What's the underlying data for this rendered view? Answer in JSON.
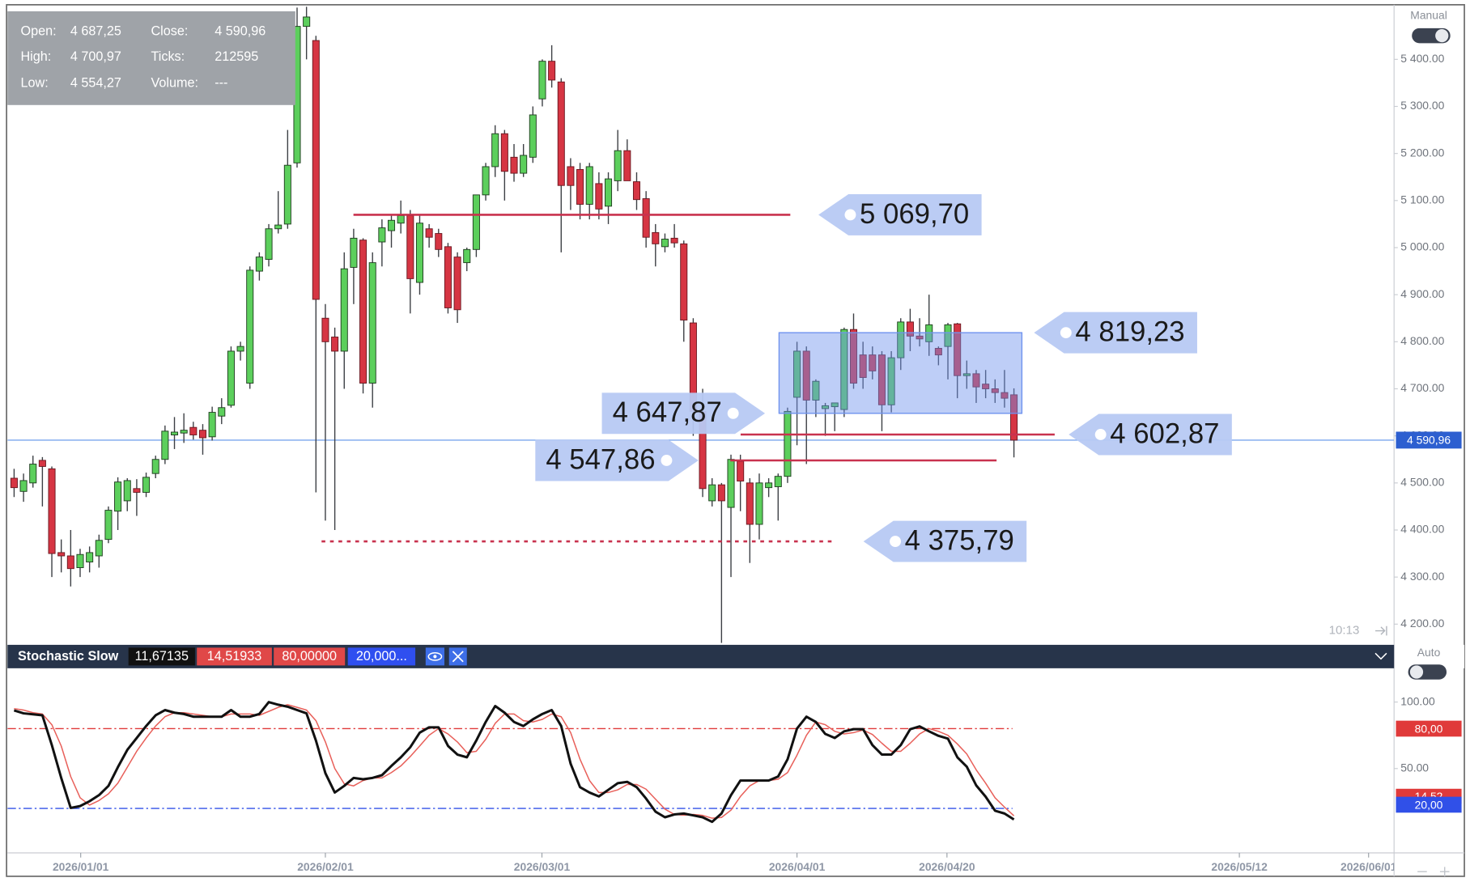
{
  "chart_data": [
    {
      "type": "candlestick",
      "mode_label": "Manual",
      "time_label": "10:13",
      "info_panel": [
        [
          "Open:",
          "4 687,25",
          "Close:",
          "4 590,96"
        ],
        [
          "High:",
          "4 700,97",
          "Ticks:",
          "212595"
        ],
        [
          "Low:",
          "4 554,27",
          "Volume:",
          "---"
        ]
      ],
      "up_color": "#5ccf5c",
      "down_color": "#d63543",
      "open": [
        4510,
        4482,
        4500,
        4548,
        4530,
        4352,
        4345,
        4320,
        4332,
        4345,
        4380,
        4440,
        4462,
        4488,
        4480,
        4520,
        4550,
        4602,
        4606,
        4618,
        4612,
        4598,
        4642,
        4665,
        4780,
        4712,
        4950,
        4975,
        5040,
        5050,
        5180,
        5470,
        5440,
        4850,
        4810,
        4780,
        4958,
        5016,
        4712,
        5012,
        5036,
        5052,
        5068,
        4926,
        5040,
        5030,
        5002,
        4980,
        4968,
        4996,
        5112,
        5172,
        5242,
        5192,
        5158,
        5192,
        5316,
        5396,
        5352,
        5172,
        5166,
        5092,
        5136,
        5088,
        5142,
        5206,
        5140,
        5104,
        5032,
        5002,
        5020,
        5008,
        4840,
        4652,
        4462,
        4496,
        4448,
        4546,
        4500,
        4412,
        4490,
        4492,
        4514,
        4682,
        4780,
        4676,
        4658,
        4662,
        4656,
        4826,
        4772,
        4772,
        4772,
        4666,
        4766,
        4842,
        4812,
        4800,
        4786,
        4790,
        4838,
        4728,
        4732,
        4710,
        4700,
        4692,
        4687.25
      ],
      "high": [
        4530,
        4520,
        4558,
        4555,
        4535,
        4380,
        4400,
        4360,
        4365,
        4390,
        4450,
        4512,
        4510,
        4508,
        4522,
        4558,
        4622,
        4640,
        4648,
        4630,
        4625,
        4662,
        4680,
        4790,
        4800,
        4960,
        4990,
        5050,
        5120,
        5250,
        5510,
        5512,
        5450,
        4880,
        4830,
        4990,
        5040,
        5020,
        4990,
        5060,
        5070,
        5100,
        5080,
        5070,
        5050,
        5040,
        5010,
        4990,
        5000,
        5110,
        5180,
        5260,
        5250,
        5220,
        5220,
        5300,
        5400,
        5430,
        5360,
        5190,
        5180,
        5180,
        5160,
        5160,
        5250,
        5230,
        5160,
        5120,
        5050,
        5030,
        5050,
        5015,
        4850,
        4700,
        4510,
        4500,
        4560,
        4560,
        4510,
        4520,
        4510,
        4520,
        4660,
        4800,
        4790,
        4720,
        4670,
        4670,
        4830,
        4860,
        4800,
        4790,
        4780,
        4780,
        4850,
        4870,
        4850,
        4900,
        4790,
        4840,
        4840,
        4760,
        4740,
        4740,
        4720,
        4740,
        4700.97
      ],
      "low": [
        4470,
        4460,
        4490,
        4450,
        4300,
        4310,
        4280,
        4300,
        4310,
        4320,
        4372,
        4400,
        4440,
        4430,
        4470,
        4510,
        4540,
        4572,
        4585,
        4592,
        4560,
        4590,
        4625,
        4660,
        4760,
        4700,
        4930,
        4960,
        5030,
        5040,
        5170,
        5400,
        4480,
        4420,
        4400,
        4700,
        4880,
        4690,
        4660,
        4960,
        5000,
        5030,
        4860,
        4900,
        5000,
        4980,
        4860,
        4840,
        4950,
        4980,
        5100,
        5150,
        5100,
        5140,
        5150,
        5180,
        5300,
        5340,
        4990,
        5080,
        5060,
        5060,
        5060,
        5050,
        5120,
        5150,
        5080,
        5000,
        4960,
        4990,
        5000,
        4800,
        4600,
        4470,
        4450,
        4160,
        4300,
        4440,
        4330,
        4380,
        4470,
        4420,
        4500,
        4580,
        4540,
        4640,
        4600,
        4610,
        4640,
        4700,
        4700,
        4720,
        4610,
        4650,
        4740,
        4780,
        4790,
        4770,
        4750,
        4720,
        4680,
        4700,
        4670,
        4680,
        4670,
        4660,
        4554.27
      ],
      "close": [
        4490,
        4505,
        4540,
        4535,
        4350,
        4345,
        4318,
        4348,
        4352,
        4378,
        4442,
        4502,
        4505,
        4480,
        4512,
        4550,
        4610,
        4608,
        4612,
        4602,
        4596,
        4650,
        4660,
        4780,
        4790,
        4952,
        4980,
        5040,
        5048,
        5175,
        5470,
        5490,
        4890,
        4800,
        4780,
        4955,
        5020,
        4712,
        4968,
        5042,
        5058,
        5068,
        4934,
        5052,
        5022,
        4996,
        4872,
        4868,
        4996,
        5112,
        5172,
        5242,
        5162,
        5158,
        5196,
        5282,
        5396,
        5356,
        5132,
        5132,
        5092,
        5172,
        5082,
        5146,
        5206,
        5142,
        5102,
        5022,
        5008,
        5018,
        5010,
        4846,
        4652,
        4488,
        4496,
        4462,
        4550,
        4504,
        4412,
        4500,
        4500,
        4514,
        4652,
        4780,
        4676,
        4716,
        4664,
        4670,
        4826,
        4712,
        4724,
        4738,
        4666,
        4766,
        4842,
        4812,
        4806,
        4836,
        4772,
        4836,
        4728,
        4732,
        4704,
        4700,
        4692,
        4680,
        4590.96
      ],
      "last_price": {
        "value": 4590.96,
        "label": "4 590,96",
        "color": "#2d5fd0"
      },
      "line_color": "#c8324e",
      "lines": [
        {
          "value": 5069.7,
          "label": "5 069,70",
          "style": "solid"
        },
        {
          "value": 4602.87,
          "label": "4 602,87",
          "style": "solid"
        },
        {
          "value": 4547.86,
          "label": "4 547,86",
          "style": "solid"
        },
        {
          "value": 4375.79,
          "label": "4 375,79",
          "style": "dotted"
        }
      ],
      "rectangle": {
        "values": [
          4647.87,
          4819.23
        ],
        "labels": [
          "4 647,87",
          "4 819,23"
        ],
        "color": "#6f93ee"
      },
      "xlim": [
        -0.7,
        146.3
      ],
      "xticks": [
        {
          "value": 7.06,
          "label": "2026/01/01"
        },
        {
          "value": 33.0,
          "label": "2026/02/01"
        },
        {
          "value": 55.96,
          "label": "2026/03/01"
        },
        {
          "value": 83.0,
          "label": "2026/04/01"
        },
        {
          "value": 98.9,
          "label": "2026/04/20"
        },
        {
          "value": 129.9,
          "label": "2026/05/12"
        },
        {
          "value": 143.6,
          "label": "2026/06/01"
        }
      ],
      "ylim": [
        4160,
        5512
      ],
      "yticks": [
        {
          "value": 4200,
          "label": "4 200.00"
        },
        {
          "value": 4300,
          "label": "4 300.00"
        },
        {
          "value": 4400,
          "label": "4 400.00"
        },
        {
          "value": 4500,
          "label": "4 500.00"
        },
        {
          "value": 4600,
          "label": "4 600.00"
        },
        {
          "value": 4700,
          "label": "4 700.00"
        },
        {
          "value": 4800,
          "label": "4 800.00"
        },
        {
          "value": 4900,
          "label": "4 900.00"
        },
        {
          "value": 5000,
          "label": "5 000.00"
        },
        {
          "value": 5100,
          "label": "5 100.00"
        },
        {
          "value": 5200,
          "label": "5 200.00"
        },
        {
          "value": 5300,
          "label": "5 300.00"
        },
        {
          "value": 5400,
          "label": "5 400.00"
        }
      ]
    },
    {
      "type": "line",
      "title": "Stochastic Slow",
      "mode_label": "Auto",
      "header_values": [
        {
          "label": "11,67135",
          "color": "#111111"
        },
        {
          "label": "14,51933",
          "color": "#e04848"
        },
        {
          "label": "80,00000",
          "color": "#e04848"
        },
        {
          "label": "20,000...",
          "color": "#2f4ff0"
        }
      ],
      "series": [
        {
          "color": "#111111",
          "values": [
            93.7,
            91.5,
            90.8,
            90,
            67.6,
            43,
            20.4,
            21.8,
            25.4,
            30,
            37,
            51,
            64,
            73,
            82,
            90,
            94,
            92,
            91,
            89,
            89,
            89,
            89,
            94,
            89,
            89,
            91,
            100,
            98,
            96.5,
            94,
            91.5,
            71,
            46.5,
            32,
            37,
            43,
            42,
            43,
            45,
            52,
            58.5,
            66,
            77,
            81,
            81,
            67,
            60.5,
            58.5,
            71,
            85,
            97,
            92,
            85,
            82,
            87,
            91,
            94,
            82,
            53.5,
            36,
            32,
            29,
            34,
            39,
            40,
            36,
            27.5,
            17.6,
            13.4,
            15.5,
            16.2,
            14.8,
            13.4,
            9.9,
            16.2,
            30,
            41,
            41,
            41,
            41,
            44,
            57,
            80,
            89,
            85,
            76,
            73,
            78,
            79.6,
            79.6,
            67.6,
            60.5,
            60.5,
            67.6,
            79.6,
            81.7,
            78,
            74.6,
            72.5,
            58.5,
            51.4,
            37.3,
            28.9,
            18.3,
            16.2,
            11.67135
          ]
        },
        {
          "color": "#e8605a",
          "badge": "14,52",
          "values": [
            95,
            94,
            92,
            91,
            83,
            67,
            44,
            28,
            22.5,
            26,
            31,
            39,
            51,
            63,
            73,
            82,
            89,
            92,
            92,
            91,
            90,
            89,
            89,
            91,
            91,
            91,
            90,
            93,
            96,
            98,
            96,
            94,
            86,
            70,
            50,
            38.5,
            37,
            41,
            43,
            43,
            47,
            52,
            59,
            67,
            75,
            80,
            76,
            70,
            62,
            63,
            72,
            84,
            91,
            91,
            86,
            85,
            87,
            91,
            89,
            77,
            57,
            41,
            32,
            32,
            34,
            38,
            38,
            34.5,
            27,
            19.5,
            15.5,
            15,
            15.5,
            14.8,
            12.7,
            13.2,
            18.7,
            29,
            37,
            41,
            41,
            42,
            47,
            60,
            75,
            85,
            83,
            78,
            76,
            77,
            79,
            75.6,
            69,
            63,
            63,
            69,
            76,
            80,
            78,
            75,
            68.5,
            61,
            49,
            39,
            28,
            21,
            14.51933
          ]
        }
      ],
      "levels": [
        {
          "value": 80,
          "label": "80,00",
          "color": "#e03a3a"
        },
        {
          "value": 20,
          "label": "20,00",
          "color": "#3050e8"
        }
      ],
      "ylim": [
        -13.4,
        125.4
      ],
      "yticks": [
        {
          "value": 100,
          "label": "100.00"
        },
        {
          "value": 50,
          "label": "50.00"
        }
      ]
    }
  ]
}
